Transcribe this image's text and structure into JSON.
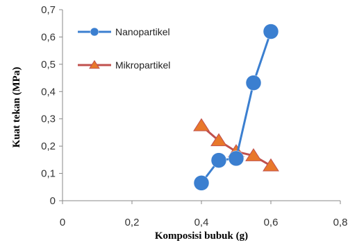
{
  "chart_data": {
    "type": "line",
    "xlabel": "Komposisi bubuk (g)",
    "ylabel": "Kuat tekan (MPa)",
    "xlim": [
      0,
      0.8
    ],
    "ylim": [
      0,
      0.7
    ],
    "x_ticks": [
      "0",
      "0,2",
      "0,4",
      "0,6",
      "0,8"
    ],
    "y_ticks": [
      "0",
      "0,1",
      "0,2",
      "0,3",
      "0,4",
      "0,5",
      "0,6",
      "0,7"
    ],
    "grid": false,
    "legend_position": "top-left inside plot",
    "series": [
      {
        "name": "Nanopartikel",
        "marker": "circle",
        "color": "#3b7fd0",
        "points": [
          {
            "x": 0.4,
            "y": 0.065
          },
          {
            "x": 0.45,
            "y": 0.148
          },
          {
            "x": 0.5,
            "y": 0.155
          },
          {
            "x": 0.55,
            "y": 0.432
          },
          {
            "x": 0.6,
            "y": 0.62
          }
        ]
      },
      {
        "name": "Mikropartikel",
        "marker": "triangle",
        "color": "#c0504d",
        "marker_fill": "#e8782a",
        "points": [
          {
            "x": 0.4,
            "y": 0.275
          },
          {
            "x": 0.45,
            "y": 0.22
          },
          {
            "x": 0.5,
            "y": 0.18
          },
          {
            "x": 0.55,
            "y": 0.165
          },
          {
            "x": 0.6,
            "y": 0.128
          }
        ]
      }
    ]
  }
}
